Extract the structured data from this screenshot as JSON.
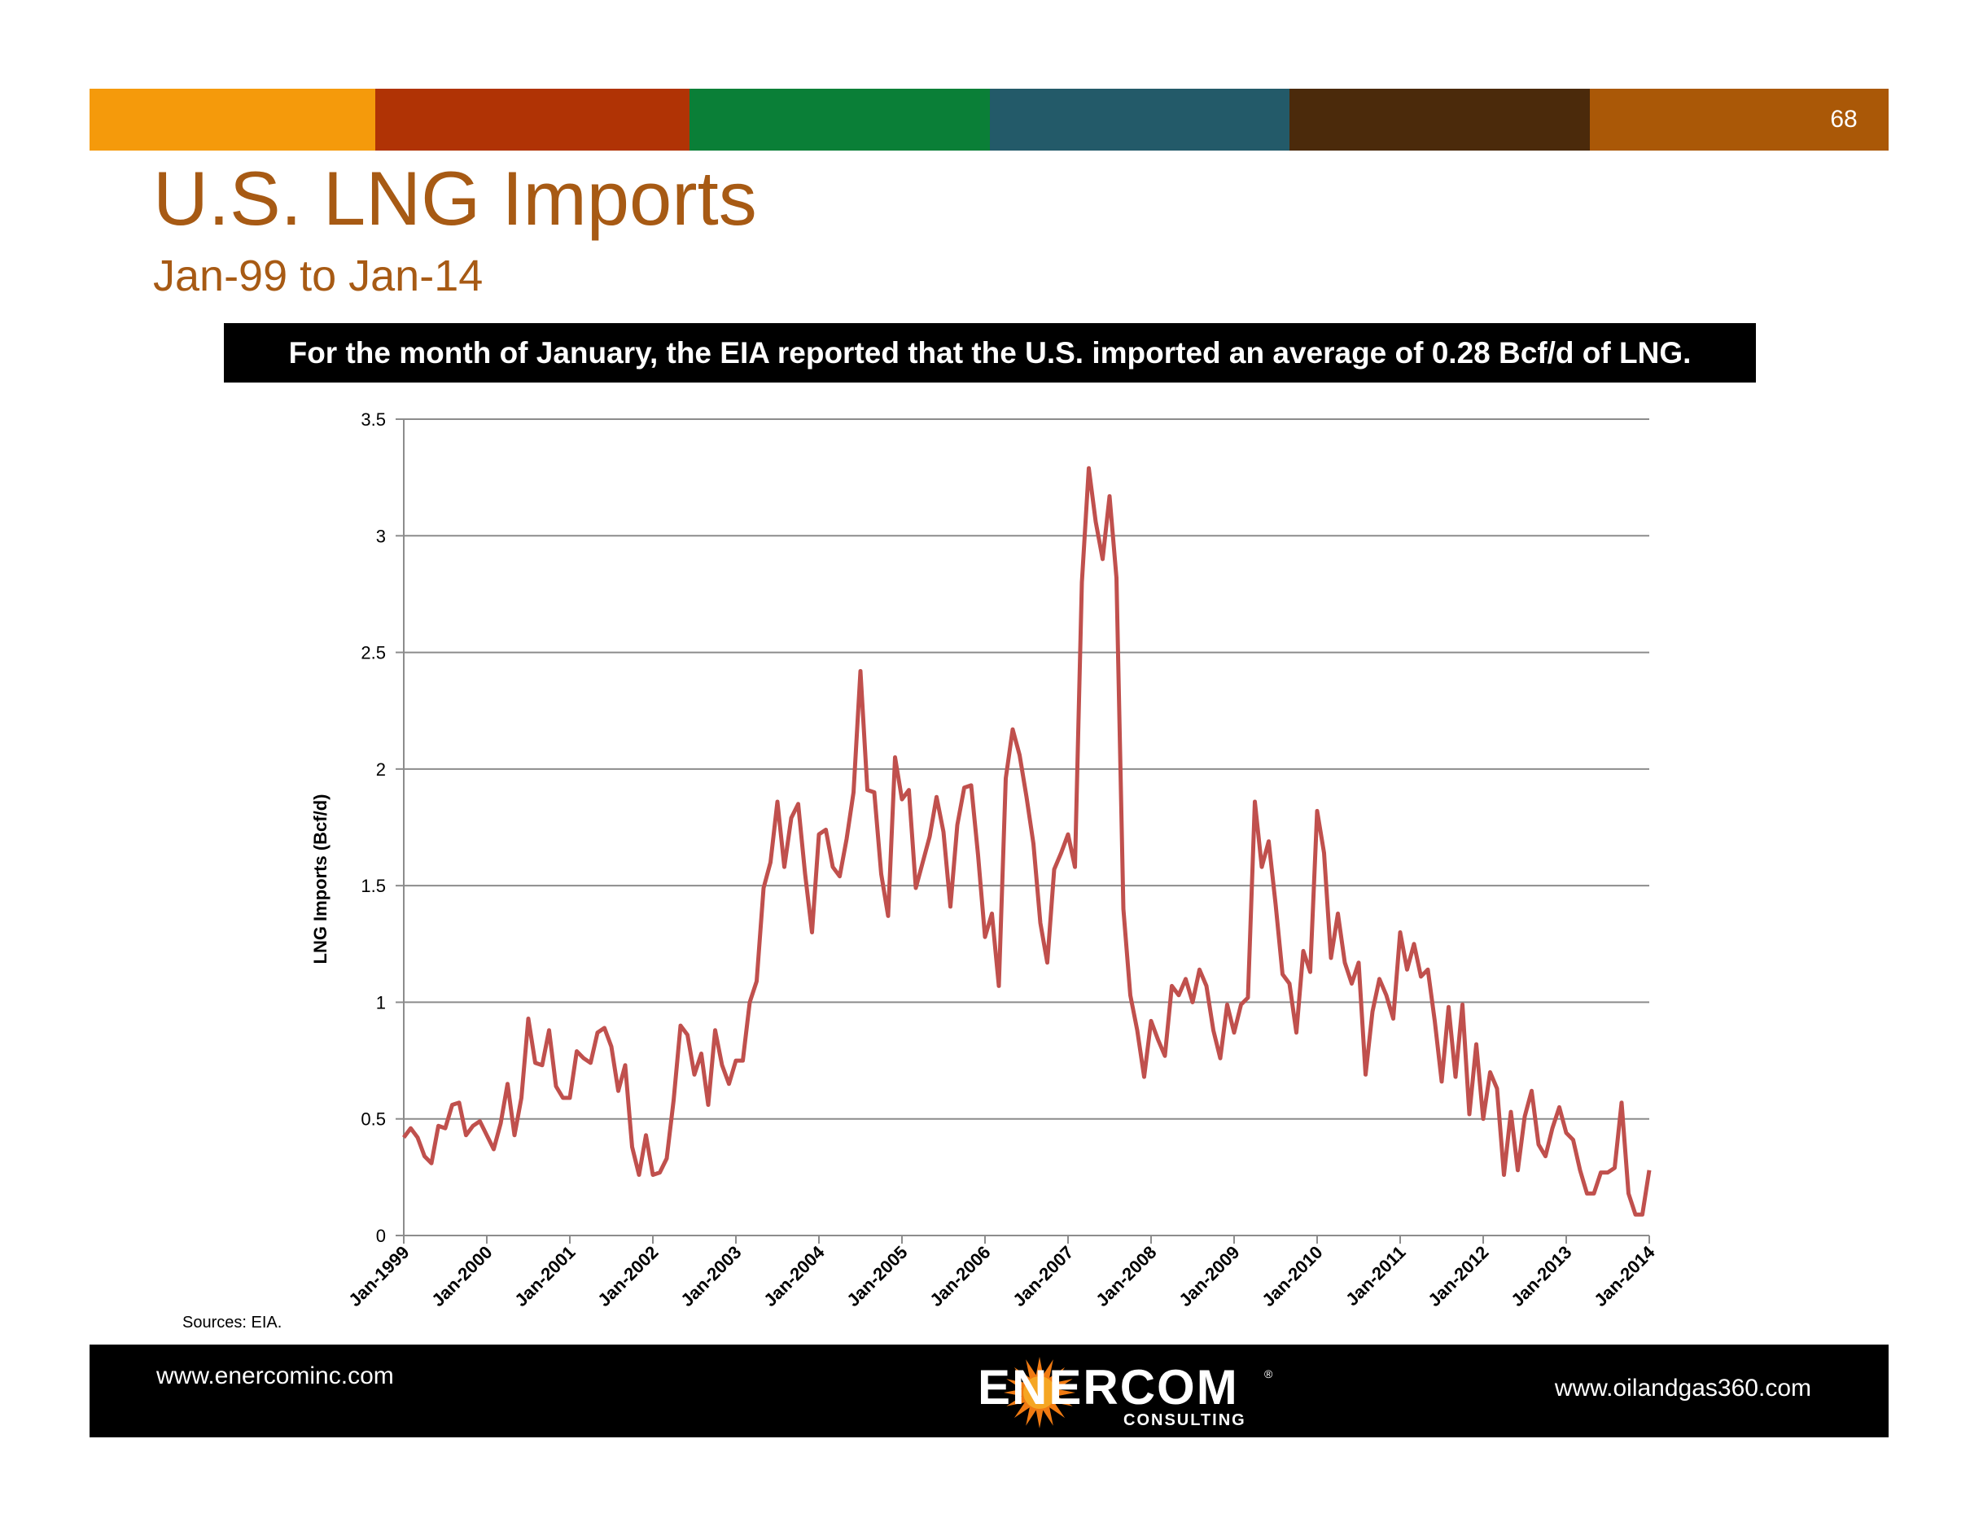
{
  "colors": {
    "accent": "#A75A14",
    "series": "#C0504D",
    "gridline": "#8C8C8C",
    "bar_segments": [
      "#F59A0B",
      "#B03305",
      "#0A7F37",
      "#235A69",
      "#4B2A0B",
      "#AA5807"
    ]
  },
  "slide": {
    "page_number": "68",
    "title": "U.S. LNG Imports",
    "subtitle": "Jan-99 to Jan-14",
    "banner": "For the month of January, the EIA reported that the U.S. imported an average of 0.28 Bcf/d of LNG.",
    "sources": "Sources: EIA.",
    "footer_left": "www.enercominc.com",
    "footer_right": "www.oilandgas360.com",
    "logo_name": "ENERCOM",
    "logo_subtitle": "CONSULTING",
    "logo_icon": "sunburst-icon"
  },
  "chart_data": {
    "type": "line",
    "title": "",
    "xlabel": "",
    "ylabel": "LNG Imports (Bcf/d)",
    "ylim": [
      0,
      3.5
    ],
    "yticks": [
      "0",
      "0.5",
      "1",
      "1.5",
      "2",
      "2.5",
      "3",
      "3.5"
    ],
    "xticks": [
      "Jan-1999",
      "Jan-2000",
      "Jan-2001",
      "Jan-2002",
      "Jan-2003",
      "Jan-2004",
      "Jan-2005",
      "Jan-2006",
      "Jan-2007",
      "Jan-2008",
      "Jan-2009",
      "Jan-2010",
      "Jan-2011",
      "Jan-2012",
      "Jan-2013",
      "Jan-2014"
    ],
    "x_start": "Jan-1999",
    "x_end": "Jan-2014",
    "grid": true,
    "legend": "none",
    "series": [
      {
        "values": [
          0.42,
          0.46,
          0.42,
          0.34,
          0.31,
          0.47,
          0.46,
          0.56,
          0.57,
          0.43,
          0.47,
          0.49,
          0.43,
          0.37,
          0.48,
          0.65,
          0.43,
          0.59,
          0.93,
          0.74,
          0.73,
          0.88,
          0.64,
          0.59,
          0.59,
          0.79,
          0.76,
          0.74,
          0.87,
          0.89,
          0.81,
          0.62,
          0.73,
          0.38,
          0.26,
          0.43,
          0.26,
          0.27,
          0.33,
          0.58,
          0.9,
          0.86,
          0.69,
          0.78,
          0.56,
          0.88,
          0.73,
          0.65,
          0.75,
          0.75,
          1.0,
          1.09,
          1.49,
          1.6,
          1.86,
          1.58,
          1.79,
          1.85,
          1.55,
          1.3,
          1.72,
          1.74,
          1.58,
          1.54,
          1.7,
          1.9,
          2.42,
          1.91,
          1.9,
          1.55,
          1.37,
          2.05,
          1.87,
          1.91,
          1.49,
          1.6,
          1.71,
          1.88,
          1.73,
          1.41,
          1.76,
          1.92,
          1.93,
          1.63,
          1.28,
          1.38,
          1.07,
          1.96,
          2.17,
          2.06,
          1.88,
          1.68,
          1.34,
          1.17,
          1.57,
          1.64,
          1.72,
          1.58,
          2.8,
          3.29,
          3.06,
          2.9,
          3.17,
          2.82,
          1.4,
          1.03,
          0.88,
          0.68,
          0.92,
          0.84,
          0.77,
          1.07,
          1.03,
          1.1,
          1.0,
          1.14,
          1.07,
          0.88,
          0.76,
          0.99,
          0.87,
          0.99,
          1.02,
          1.86,
          1.58,
          1.69,
          1.42,
          1.12,
          1.08,
          0.87,
          1.22,
          1.13,
          1.82,
          1.64,
          1.19,
          1.38,
          1.17,
          1.08,
          1.17,
          0.69,
          0.96,
          1.1,
          1.03,
          0.93,
          1.3,
          1.14,
          1.25,
          1.11,
          1.14,
          0.92,
          0.66,
          0.98,
          0.68,
          0.99,
          0.52,
          0.82,
          0.5,
          0.7,
          0.63,
          0.26,
          0.53,
          0.28,
          0.51,
          0.62,
          0.39,
          0.34,
          0.46,
          0.55,
          0.44,
          0.41,
          0.28,
          0.18,
          0.18,
          0.27,
          0.27,
          0.29,
          0.57,
          0.18,
          0.09,
          0.09,
          0.28
        ]
      }
    ]
  }
}
